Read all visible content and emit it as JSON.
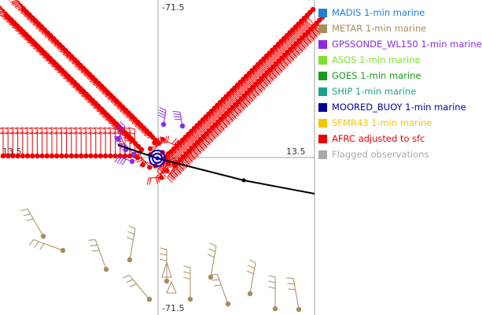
{
  "chart_data": {
    "type": "scatter",
    "axis_labels": {
      "top": "-71.5",
      "bottom": "-71.5",
      "left": "13.5",
      "right": "13.5"
    },
    "legend": [
      {
        "label": "MADIS 1-min marine",
        "color": "#1f7fd8"
      },
      {
        "label": "METAR 1-min marine",
        "color": "#a88c5c"
      },
      {
        "label": "GPSSONDE_WL150 1-min marine",
        "color": "#8a2be2"
      },
      {
        "label": "ASOS 1-min marine",
        "color": "#7fe030"
      },
      {
        "label": "GOES 1-min marine",
        "color": "#1a9a1a"
      },
      {
        "label": "SHIP 1-min marine",
        "color": "#20a08c"
      },
      {
        "label": "MOORED_BUOY 1-min marine",
        "color": "#00009a"
      },
      {
        "label": "SFMR43 1-min marine",
        "color": "#f0c800"
      },
      {
        "label": "AFRC adjusted to sfc",
        "color": "#ee0000"
      },
      {
        "label": "Flagged observations",
        "color": "#a8a8a8"
      }
    ],
    "grid": false
  }
}
